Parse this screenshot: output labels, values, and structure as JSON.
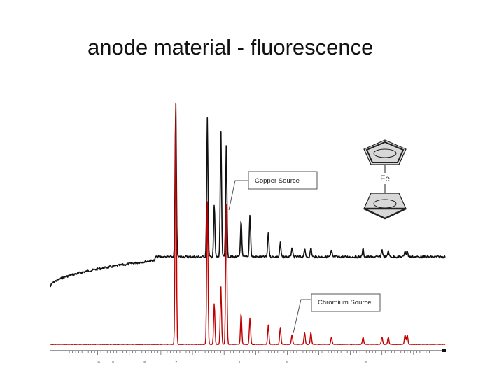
{
  "slide": {
    "title": "anode material - fluorescence"
  },
  "callouts": {
    "copper": "Copper Source",
    "chromium": "Chromium Source"
  },
  "molecule": {
    "metal_label": "Fe",
    "icon": "ferrocene-structure-icon"
  },
  "colors": {
    "copper_trace": "#111111",
    "chromium_trace": "#c00000",
    "axis": "#333333"
  },
  "chart_data": {
    "type": "line",
    "title": "anode material - fluorescence",
    "xlabel": "",
    "ylabel": "",
    "x_reversed": true,
    "xlim": [
      11.5,
      -1
    ],
    "tick_labels": [
      "10",
      "9",
      "8",
      "7",
      "6",
      "5",
      "3"
    ],
    "grid": false,
    "legend": "callouts",
    "series": [
      {
        "name": "Copper Source",
        "color": "#111111",
        "baseline": "sloped rise to plateau after 7.5",
        "peaks": [
          {
            "x": 7.53,
            "y": 1.0
          },
          {
            "x": 6.53,
            "y": 0.9
          },
          {
            "x": 6.31,
            "y": 0.34
          },
          {
            "x": 6.1,
            "y": 0.82
          },
          {
            "x": 5.93,
            "y": 0.73
          },
          {
            "x": 5.46,
            "y": 0.24
          },
          {
            "x": 5.18,
            "y": 0.28
          },
          {
            "x": 4.6,
            "y": 0.16
          },
          {
            "x": 4.22,
            "y": 0.09
          },
          {
            "x": 3.85,
            "y": 0.06
          },
          {
            "x": 3.45,
            "y": 0.05
          },
          {
            "x": 3.25,
            "y": 0.06
          },
          {
            "x": 2.6,
            "y": 0.04
          },
          {
            "x": 1.6,
            "y": 0.05
          },
          {
            "x": 1.0,
            "y": 0.05
          },
          {
            "x": 0.8,
            "y": 0.04
          },
          {
            "x": 0.27,
            "y": 0.04
          },
          {
            "x": 0.2,
            "y": 0.04
          }
        ]
      },
      {
        "name": "Chromium Source",
        "color": "#c00000",
        "baseline": "flat",
        "peaks": [
          {
            "x": 7.53,
            "y": 1.0
          },
          {
            "x": 6.53,
            "y": 0.59
          },
          {
            "x": 6.31,
            "y": 0.17
          },
          {
            "x": 6.1,
            "y": 0.24
          },
          {
            "x": 5.93,
            "y": 0.58
          },
          {
            "x": 5.46,
            "y": 0.13
          },
          {
            "x": 5.18,
            "y": 0.11
          },
          {
            "x": 4.6,
            "y": 0.08
          },
          {
            "x": 4.22,
            "y": 0.07
          },
          {
            "x": 3.85,
            "y": 0.04
          },
          {
            "x": 3.45,
            "y": 0.05
          },
          {
            "x": 3.25,
            "y": 0.05
          },
          {
            "x": 2.6,
            "y": 0.03
          },
          {
            "x": 1.6,
            "y": 0.03
          },
          {
            "x": 1.0,
            "y": 0.03
          },
          {
            "x": 0.8,
            "y": 0.03
          },
          {
            "x": 0.27,
            "y": 0.04
          },
          {
            "x": 0.2,
            "y": 0.04
          }
        ]
      }
    ]
  }
}
